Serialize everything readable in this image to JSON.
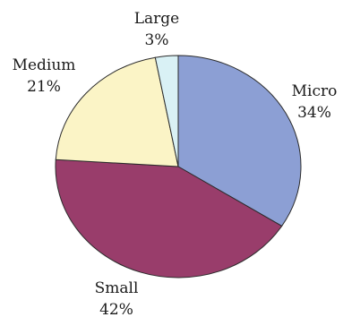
{
  "chart_data": {
    "type": "pie",
    "slices": [
      {
        "label": "Micro",
        "percent_label": "34%",
        "value": 34,
        "color": "#8c9fd4"
      },
      {
        "label": "Small",
        "percent_label": "42%",
        "value": 42,
        "color": "#993d6b"
      },
      {
        "label": "Medium",
        "percent_label": "21%",
        "value": 21,
        "color": "#fbf4c6"
      },
      {
        "label": "Large",
        "percent_label": "3%",
        "value": 3,
        "color": "#d9f1f5"
      }
    ],
    "start": "12 o'clock",
    "direction": "clockwise",
    "legend": "none"
  }
}
